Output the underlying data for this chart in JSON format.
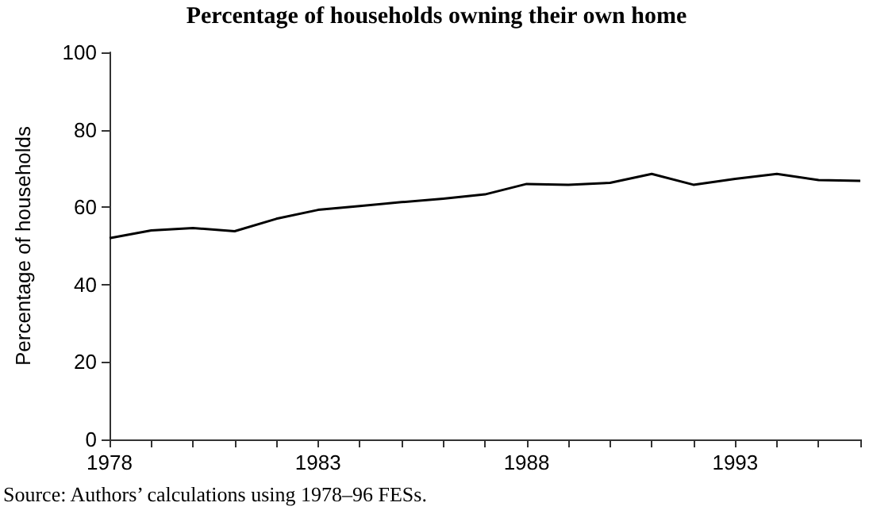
{
  "chart_data": {
    "type": "line",
    "title": "Percentage of households owning their own home",
    "ylabel": "Percentage of households",
    "annotations": [
      "Source: Authors’ calculations using 1978–96 FESs."
    ],
    "x": [
      1978,
      1979,
      1980,
      1981,
      1982,
      1983,
      1984,
      1985,
      1986,
      1987,
      1988,
      1989,
      1990,
      1991,
      1992,
      1993,
      1994,
      1995,
      1996
    ],
    "series": [
      {
        "color": "#000000",
        "values": [
          52,
          54,
          54.6,
          53.8,
          57,
          59.3,
          60.3,
          61.3,
          62.2,
          63.3,
          66,
          65.8,
          66.3,
          68.6,
          65.8,
          67.3,
          68.6,
          67,
          66.8
        ]
      }
    ],
    "xlim": [
      1978,
      1996
    ],
    "xticks": [
      1978,
      {
        "value": 1979,
        "label": null
      },
      {
        "value": 1980,
        "label": null
      },
      {
        "value": 1981,
        "label": null
      },
      {
        "value": 1982,
        "label": null
      },
      1983,
      {
        "value": 1984,
        "label": null
      },
      {
        "value": 1985,
        "label": null
      },
      {
        "value": 1986,
        "label": null
      },
      {
        "value": 1987,
        "label": null
      },
      1988,
      {
        "value": 1989,
        "label": null
      },
      {
        "value": 1990,
        "label": null
      },
      {
        "value": 1991,
        "label": null
      },
      {
        "value": 1992,
        "label": null
      },
      1993,
      {
        "value": 1994,
        "label": null
      },
      {
        "value": 1995,
        "label": null
      },
      {
        "value": 1996,
        "label": null
      }
    ],
    "ylim": [
      0,
      100
    ],
    "yticks": [
      0,
      20,
      40,
      60,
      80,
      100
    ],
    "marker": "none",
    "line_style": "solid"
  }
}
